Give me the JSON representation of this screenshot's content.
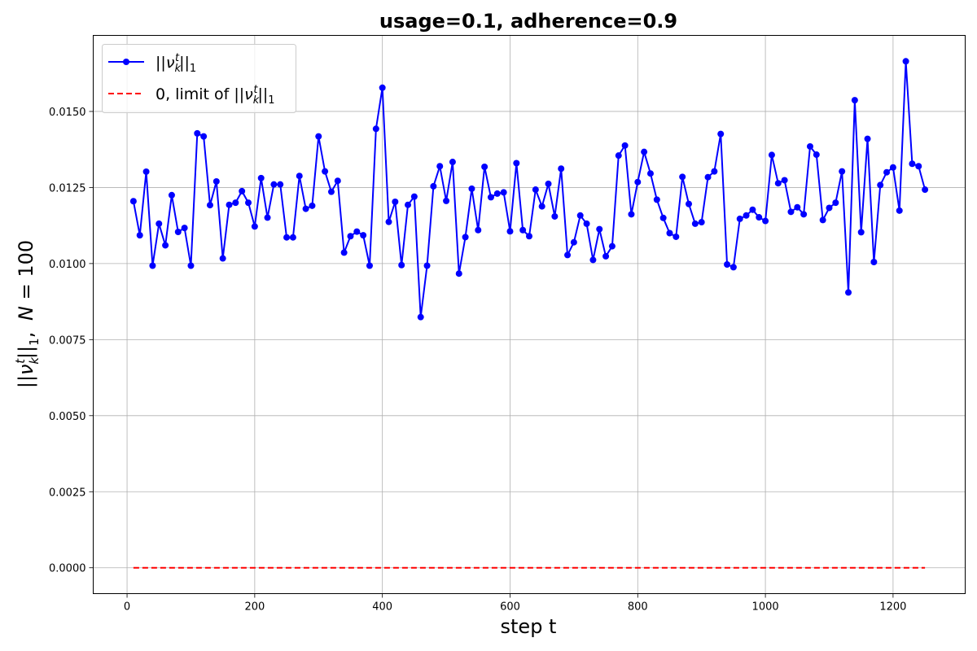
{
  "chart_data": {
    "type": "line",
    "title": "usage=0.1, adherence=0.9",
    "xlabel": "step t",
    "ylabel": "||ν_k^t||_1,  N = 100",
    "xlim": [
      -53,
      1313
    ],
    "ylim": [
      -0.00085,
      0.0175
    ],
    "xticks": [
      0,
      200,
      400,
      600,
      800,
      1000,
      1200
    ],
    "yticks": [
      0.0,
      0.0025,
      0.005,
      0.0075,
      0.01,
      0.0125,
      0.015
    ],
    "ytick_labels": [
      "0.0000",
      "0.0025",
      "0.0050",
      "0.0075",
      "0.0100",
      "0.0125",
      "0.0150"
    ],
    "grid": true,
    "legend_position": "top-left",
    "colors": {
      "series": "#0000ff",
      "limit": "#ff0000"
    },
    "series": [
      {
        "name": "||ν_k^t||_1",
        "style": "solid-with-markers",
        "x": [
          10,
          20,
          30,
          40,
          50,
          60,
          70,
          80,
          90,
          100,
          110,
          120,
          130,
          140,
          150,
          160,
          170,
          180,
          190,
          200,
          210,
          220,
          230,
          240,
          250,
          260,
          270,
          280,
          290,
          300,
          310,
          320,
          330,
          340,
          350,
          360,
          370,
          380,
          390,
          400,
          410,
          420,
          430,
          440,
          450,
          460,
          470,
          480,
          490,
          500,
          510,
          520,
          530,
          540,
          550,
          560,
          570,
          580,
          590,
          600,
          610,
          620,
          630,
          640,
          650,
          660,
          670,
          680,
          690,
          700,
          710,
          720,
          730,
          740,
          750,
          760,
          770,
          780,
          790,
          800,
          810,
          820,
          830,
          840,
          850,
          860,
          870,
          880,
          890,
          900,
          910,
          920,
          930,
          940,
          950,
          960,
          970,
          980,
          990,
          1000,
          1010,
          1020,
          1030,
          1040,
          1050,
          1060,
          1070,
          1080,
          1090,
          1100,
          1110,
          1120,
          1130,
          1140,
          1150,
          1160,
          1170,
          1180,
          1190,
          1200,
          1210,
          1220,
          1230,
          1240,
          1250
        ],
        "y": [
          0.01205,
          0.01093,
          0.01302,
          0.00993,
          0.01131,
          0.0106,
          0.01225,
          0.01104,
          0.01117,
          0.00993,
          0.01428,
          0.01418,
          0.01192,
          0.0127,
          0.01017,
          0.01193,
          0.012,
          0.01238,
          0.012,
          0.01122,
          0.01281,
          0.01151,
          0.0126,
          0.0126,
          0.01086,
          0.01086,
          0.01288,
          0.0118,
          0.0119,
          0.01418,
          0.01303,
          0.01236,
          0.01272,
          0.01036,
          0.0109,
          0.01105,
          0.01093,
          0.00993,
          0.01443,
          0.01578,
          0.01137,
          0.01203,
          0.00995,
          0.01193,
          0.0122,
          0.00824,
          0.00993,
          0.01254,
          0.0132,
          0.01206,
          0.01334,
          0.00967,
          0.01087,
          0.01246,
          0.0111,
          0.01318,
          0.01218,
          0.0123,
          0.01234,
          0.01106,
          0.0133,
          0.0111,
          0.0109,
          0.01243,
          0.01188,
          0.01262,
          0.01155,
          0.01312,
          0.01028,
          0.0107,
          0.01158,
          0.01131,
          0.01012,
          0.01113,
          0.01024,
          0.01057,
          0.01355,
          0.01388,
          0.01162,
          0.01268,
          0.01367,
          0.01296,
          0.0121,
          0.0115,
          0.011,
          0.01088,
          0.01285,
          0.01196,
          0.01131,
          0.01136,
          0.01284,
          0.01303,
          0.01426,
          0.00997,
          0.00988,
          0.01147,
          0.01158,
          0.01177,
          0.01152,
          0.0114,
          0.01357,
          0.01264,
          0.01274,
          0.0117,
          0.01185,
          0.01162,
          0.01385,
          0.01358,
          0.01143,
          0.01183,
          0.012,
          0.01303,
          0.00905,
          0.01537,
          0.01103,
          0.0141,
          0.01005,
          0.01258,
          0.013,
          0.01316,
          0.01174,
          0.01665,
          0.01328,
          0.0132,
          0.01243
        ]
      },
      {
        "name": "0, limit of ||ν_k^t||_1",
        "style": "dashed",
        "x": [
          10,
          1250
        ],
        "y": [
          0,
          0
        ]
      }
    ]
  }
}
